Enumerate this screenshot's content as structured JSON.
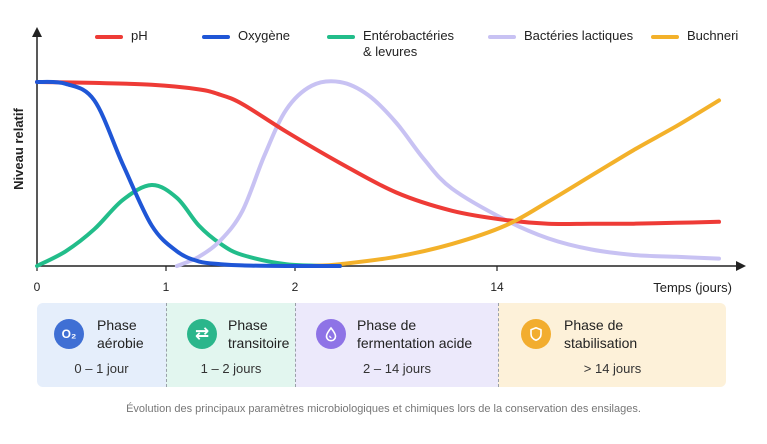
{
  "chart_data": {
    "type": "line",
    "ylabel": "Niveau relatif",
    "xlabel": "Temps (jours)",
    "x_ticks": [
      "0",
      "1",
      "2",
      "14"
    ],
    "xlim": [
      0,
      28
    ],
    "ylim": [
      0,
      100
    ],
    "grid": false,
    "legend_position": "top",
    "series": [
      {
        "name": "pH",
        "color": "#ee3b36",
        "x": [
          0,
          2,
          4,
          6,
          7,
          8,
          10,
          12,
          14,
          16,
          18,
          20,
          22,
          24,
          26,
          28
        ],
        "y": [
          100,
          99.5,
          98.5,
          96,
          93,
          88,
          73,
          56,
          40,
          30,
          25,
          23,
          23,
          23,
          23.5,
          24
        ]
      },
      {
        "name": "Oxygène",
        "color": "#1f56d6",
        "x": [
          0,
          1,
          2,
          3,
          4,
          5,
          6,
          7,
          8,
          10,
          12
        ],
        "y": [
          100,
          99,
          90,
          55,
          22,
          8,
          2.5,
          1,
          0.3,
          0,
          0
        ]
      },
      {
        "name": "Entérobactéries\n& levures",
        "color": "#22bd8a",
        "x": [
          0,
          1,
          2,
          3,
          4,
          5,
          6,
          7,
          8,
          10,
          12
        ],
        "y": [
          0,
          8,
          20,
          36,
          44,
          37,
          22,
          12,
          6,
          1,
          0
        ]
      },
      {
        "name": "Bactéries lactiques",
        "color": "#c8c2f3",
        "x": [
          5,
          6,
          7,
          8,
          9,
          10,
          11,
          12,
          13,
          14,
          15,
          16,
          18,
          20,
          22,
          24,
          26,
          28
        ],
        "y": [
          0,
          5,
          14,
          30,
          60,
          85,
          98,
          100,
          93,
          78,
          58,
          42,
          25,
          15,
          9,
          6,
          5,
          4
        ]
      },
      {
        "name": "Buchneri",
        "color": "#f3b12a",
        "x": [
          11,
          12,
          14,
          16,
          18,
          20,
          22,
          24,
          26,
          28
        ],
        "y": [
          0,
          1,
          5,
          12,
          22,
          35,
          49,
          63,
          76,
          90
        ]
      }
    ]
  },
  "phases": [
    {
      "title": "Phase\naérobie",
      "range": "0 – 1 jour",
      "icon": "oxygen-icon",
      "icon_text": "O₂",
      "color": "#3f6fd4",
      "bg": "#e5eefb"
    },
    {
      "title": "Phase\ntransitoire",
      "range": "1 – 2 jours",
      "icon": "exchange-arrows-icon",
      "icon_text": "⇄",
      "color": "#2bb68b",
      "bg": "#e2f6ef"
    },
    {
      "title": "Phase de\nfermentation acide",
      "range": "2 – 14 jours",
      "icon": "acid-drop-icon",
      "icon_text": "",
      "color": "#8e73e6",
      "bg": "#ece9fb"
    },
    {
      "title": "Phase de\nstabilisation",
      "range": "> 14 jours",
      "icon": "shield-icon",
      "icon_text": "",
      "color": "#f2ad2f",
      "bg": "#fdf1d9"
    }
  ],
  "caption": "Évolution des principaux paramètres microbiologiques et chimiques lors de la conservation des ensilages."
}
